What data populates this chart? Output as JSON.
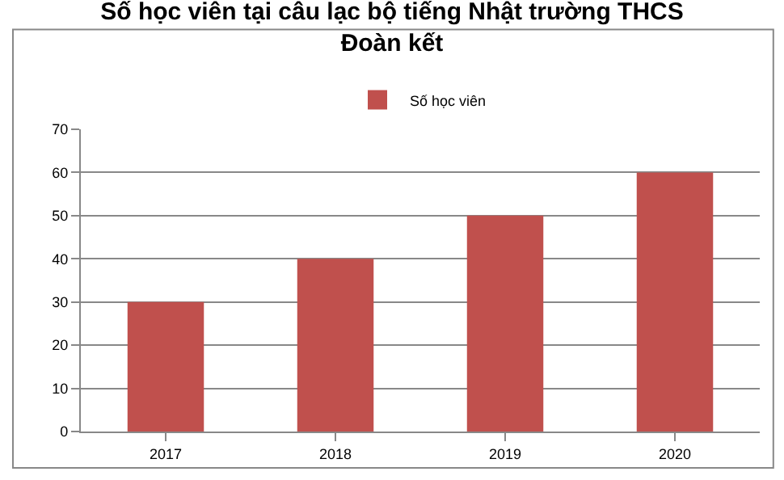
{
  "chart_data": {
    "type": "bar",
    "title": "Số học viên tại câu lạc bộ tiếng Nhật trường THCS Đoàn kết",
    "categories": [
      "2017",
      "2018",
      "2019",
      "2020"
    ],
    "series": [
      {
        "name": "Số học viên",
        "color": "#c0504d",
        "values": [
          30,
          40,
          50,
          60
        ]
      }
    ],
    "ylim": [
      0,
      70
    ],
    "yticks": [
      0,
      10,
      20,
      30,
      40,
      50,
      60,
      70
    ],
    "grid": "y",
    "legend": "top"
  }
}
